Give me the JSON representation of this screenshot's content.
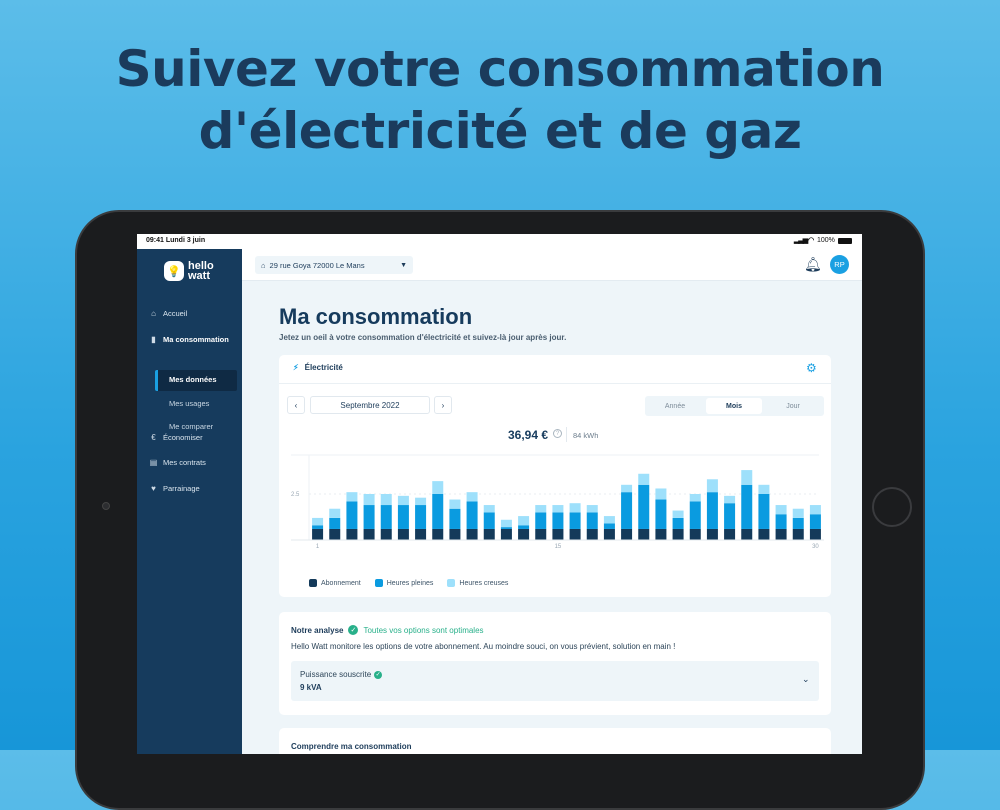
{
  "headline": {
    "line1": "Suivez votre consommation",
    "line2": "d'électricité et de gaz"
  },
  "status_bar": {
    "time": "09:41 Lundi 3 juin",
    "battery": "100%"
  },
  "sidebar": {
    "logo": "hello watt",
    "items": [
      {
        "label": "Accueil",
        "icon": "home-icon"
      },
      {
        "label": "Ma consommation",
        "icon": "bar-chart-icon",
        "active": true
      },
      {
        "label": "Économiser",
        "icon": "euro-icon"
      },
      {
        "label": "Mes contrats",
        "icon": "document-icon"
      },
      {
        "label": "Parrainage",
        "icon": "gift-icon"
      }
    ],
    "subitems": [
      {
        "label": "Mes données",
        "active": true
      },
      {
        "label": "Mes usages"
      },
      {
        "label": "Me comparer"
      }
    ]
  },
  "topbar": {
    "address": "29 rue Goya 72000 Le Mans",
    "avatar": "RP"
  },
  "page": {
    "title": "Ma consommation",
    "subtitle": "Jetez un oeil à votre consommation d'électricité et suivez-là jour après jour."
  },
  "energy_card": {
    "title": "Électricité",
    "period": "Septembre 2022",
    "tabs": [
      "Année",
      "Mois",
      "Jour"
    ],
    "active_tab": "Mois",
    "cost": "36,94 €",
    "kwh": "84 kWh"
  },
  "colors": {
    "abonnement": "#143a5a",
    "heures_pleines": "#0a9be0",
    "heures_creuses": "#9ee0fb",
    "accent": "#1aa0e2",
    "success": "#28b08a"
  },
  "chart_data": {
    "type": "bar",
    "stacked": true,
    "ylim": [
      0,
      5.5
    ],
    "yticks": [
      "5",
      "2.5"
    ],
    "xticks": [
      "1",
      "15",
      "30"
    ],
    "grid": true,
    "legend": "bottom-left",
    "categories": [
      1,
      2,
      3,
      4,
      5,
      6,
      7,
      8,
      9,
      10,
      11,
      12,
      13,
      14,
      15,
      16,
      17,
      18,
      19,
      20,
      21,
      22,
      23,
      24,
      25,
      26,
      27,
      28,
      29,
      30
    ],
    "series": [
      {
        "name": "Abonnement",
        "values": [
          0.6,
          0.6,
          0.6,
          0.6,
          0.6,
          0.6,
          0.6,
          0.6,
          0.6,
          0.6,
          0.6,
          0.6,
          0.6,
          0.6,
          0.6,
          0.6,
          0.6,
          0.6,
          0.6,
          0.6,
          0.6,
          0.6,
          0.6,
          0.6,
          0.6,
          0.6,
          0.6,
          0.6,
          0.6,
          0.6
        ]
      },
      {
        "name": "Heures pleines",
        "values": [
          0.2,
          0.6,
          1.5,
          1.3,
          1.3,
          1.3,
          1.3,
          1.9,
          1.1,
          1.5,
          0.9,
          0.1,
          0.2,
          0.9,
          0.9,
          0.9,
          0.9,
          0.3,
          2.0,
          2.4,
          1.6,
          0.6,
          1.5,
          2.0,
          1.4,
          2.4,
          1.9,
          0.8,
          0.6,
          0.8
        ]
      },
      {
        "name": "Heures creuses",
        "values": [
          0.4,
          0.5,
          0.5,
          0.6,
          0.6,
          0.5,
          0.4,
          0.7,
          0.5,
          0.5,
          0.4,
          0.4,
          0.5,
          0.4,
          0.4,
          0.5,
          0.4,
          0.4,
          0.4,
          0.6,
          0.6,
          0.4,
          0.4,
          0.7,
          0.4,
          0.8,
          0.5,
          0.5,
          0.5,
          0.5
        ]
      }
    ]
  },
  "analysis": {
    "title": "Notre analyse",
    "status": "Toutes vos options sont optimales",
    "text": "Hello Watt monitore les options de votre abonnement. Au moindre souci, on vous prévient, solution en main !",
    "option_label": "Puissance souscrite",
    "option_value": "9 kVA"
  },
  "next_card": {
    "title": "Comprendre ma consommation"
  }
}
